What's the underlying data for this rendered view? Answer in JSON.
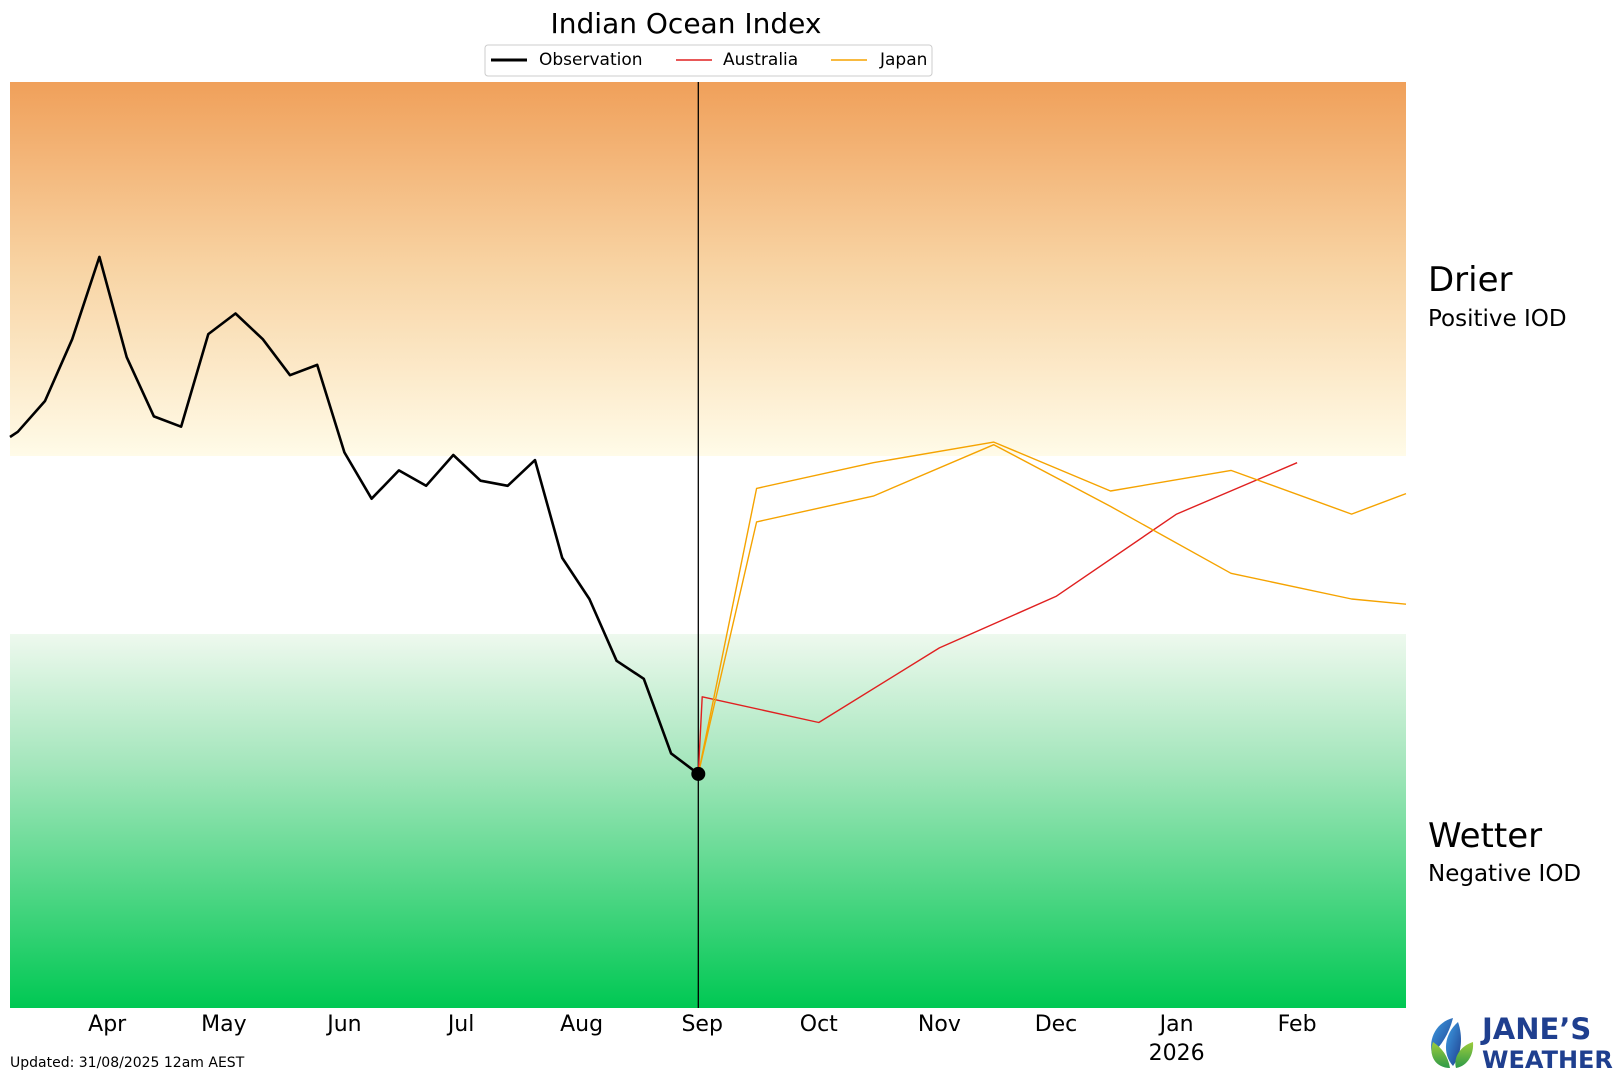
{
  "chart_data": {
    "type": "line",
    "title": "Indian Ocean Index",
    "x_axis": {
      "ticks": [
        "Apr",
        "May",
        "Jun",
        "Jul",
        "Aug",
        "Sep",
        "Oct",
        "Nov",
        "Dec",
        "Jan",
        "Feb"
      ],
      "year_label": "2026",
      "range": [
        "2025-03-07",
        "2026-03-01"
      ]
    },
    "y_axis": {
      "ticks_shown": false,
      "range": [
        -2.0,
        1.6
      ],
      "zones": {
        "positive_threshold": 0.4,
        "negative_threshold": -0.4
      }
    },
    "grid": false,
    "legend": {
      "placement": "top-center",
      "entries": [
        "Observation",
        "Australia",
        "Japan"
      ]
    },
    "zone_labels": {
      "upper_title": "Drier",
      "upper_subtitle": "Positive IOD",
      "lower_title": "Wetter",
      "lower_subtitle": "Negative IOD"
    },
    "current_date": "2025-08-31",
    "series": [
      {
        "name": "Observation",
        "color": "#000000",
        "points": [
          [
            "2025-03-07",
            0.22
          ],
          [
            "2025-03-09",
            0.24
          ],
          [
            "2025-03-16",
            0.36
          ],
          [
            "2025-03-23",
            0.6
          ],
          [
            "2025-03-30",
            0.92
          ],
          [
            "2025-04-06",
            0.53
          ],
          [
            "2025-04-13",
            0.3
          ],
          [
            "2025-04-20",
            0.26
          ],
          [
            "2025-04-27",
            0.62
          ],
          [
            "2025-05-04",
            0.7
          ],
          [
            "2025-05-11",
            0.6
          ],
          [
            "2025-05-18",
            0.46
          ],
          [
            "2025-05-25",
            0.5
          ],
          [
            "2025-06-01",
            0.16
          ],
          [
            "2025-06-08",
            -0.02
          ],
          [
            "2025-06-15",
            0.09
          ],
          [
            "2025-06-22",
            0.03
          ],
          [
            "2025-06-29",
            0.15
          ],
          [
            "2025-07-06",
            0.05
          ],
          [
            "2025-07-13",
            0.03
          ],
          [
            "2025-07-20",
            0.13
          ],
          [
            "2025-07-27",
            -0.25
          ],
          [
            "2025-08-03",
            -0.41
          ],
          [
            "2025-08-10",
            -0.65
          ],
          [
            "2025-08-17",
            -0.72
          ],
          [
            "2025-08-24",
            -1.01
          ],
          [
            "2025-08-31",
            -1.09
          ]
        ]
      },
      {
        "name": "Australia",
        "color": "#e02020",
        "points": [
          [
            "2025-08-31",
            -1.09
          ],
          [
            "2025-09-01",
            -0.79
          ],
          [
            "2025-10-01",
            -0.89
          ],
          [
            "2025-11-01",
            -0.6
          ],
          [
            "2025-12-01",
            -0.4
          ],
          [
            "2026-01-01",
            -0.08
          ],
          [
            "2026-02-01",
            0.12
          ]
        ]
      },
      {
        "name": "Japan",
        "color": "#f5a300",
        "points": [
          [
            "2025-08-31",
            -1.09
          ],
          [
            "2025-09-15",
            0.02
          ],
          [
            "2025-10-15",
            0.12
          ],
          [
            "2025-11-15",
            0.2
          ],
          [
            "2025-12-15",
            0.01
          ],
          [
            "2026-01-15",
            0.09
          ],
          [
            "2026-02-15",
            -0.08
          ],
          [
            "2026-03-01",
            0.0
          ]
        ]
      },
      {
        "name": "Japan",
        "color": "#f5a300",
        "points": [
          [
            "2025-08-31",
            -1.09
          ],
          [
            "2025-09-15",
            -0.11
          ],
          [
            "2025-10-15",
            -0.01
          ],
          [
            "2025-11-15",
            0.19
          ],
          [
            "2025-12-15",
            -0.05
          ],
          [
            "2026-01-15",
            -0.31
          ],
          [
            "2026-02-15",
            -0.41
          ],
          [
            "2026-03-01",
            -0.43
          ]
        ]
      }
    ]
  },
  "footer": {
    "updated": "Updated: 31/08/2025 12am AEST"
  },
  "brand": {
    "line1": "JANE’S",
    "line2": "WEATHER",
    "color": "#1f3f8f"
  },
  "colors": {
    "drier": "#f0a058",
    "wetter": "#00c853"
  }
}
